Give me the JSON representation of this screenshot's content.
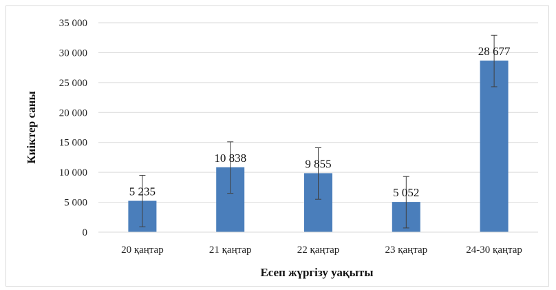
{
  "chart_data": {
    "type": "bar",
    "categories": [
      "20 қаңтар",
      "21 қаңтар",
      "22 қаңтар",
      "23 қаңтар",
      "24-30 қаңтар"
    ],
    "values": [
      5235,
      10838,
      9855,
      5052,
      28677
    ],
    "data_labels": [
      "5 235",
      "10 838",
      "9 855",
      "5 052",
      "28 677"
    ],
    "error_bars": [
      {
        "low": 900,
        "high": 9500
      },
      {
        "low": 6500,
        "high": 15100
      },
      {
        "low": 5500,
        "high": 14100
      },
      {
        "low": 700,
        "high": 9300
      },
      {
        "low": 24300,
        "high": 32900
      }
    ],
    "xlabel": "Есеп жүргізу уақыты",
    "ylabel": "Киіктер саны",
    "ylim": [
      0,
      35000
    ],
    "yticks": [
      0,
      5000,
      10000,
      15000,
      20000,
      25000,
      30000,
      35000
    ],
    "ytick_labels": [
      "0",
      "5 000",
      "10 000",
      "15 000",
      "20 000",
      "25 000",
      "30 000",
      "35 000"
    ],
    "grid": true,
    "legend": "none",
    "bar_color": "#4a7ebb",
    "gridline_color": "#d9d9d9",
    "errorbar_color": "#404040"
  }
}
